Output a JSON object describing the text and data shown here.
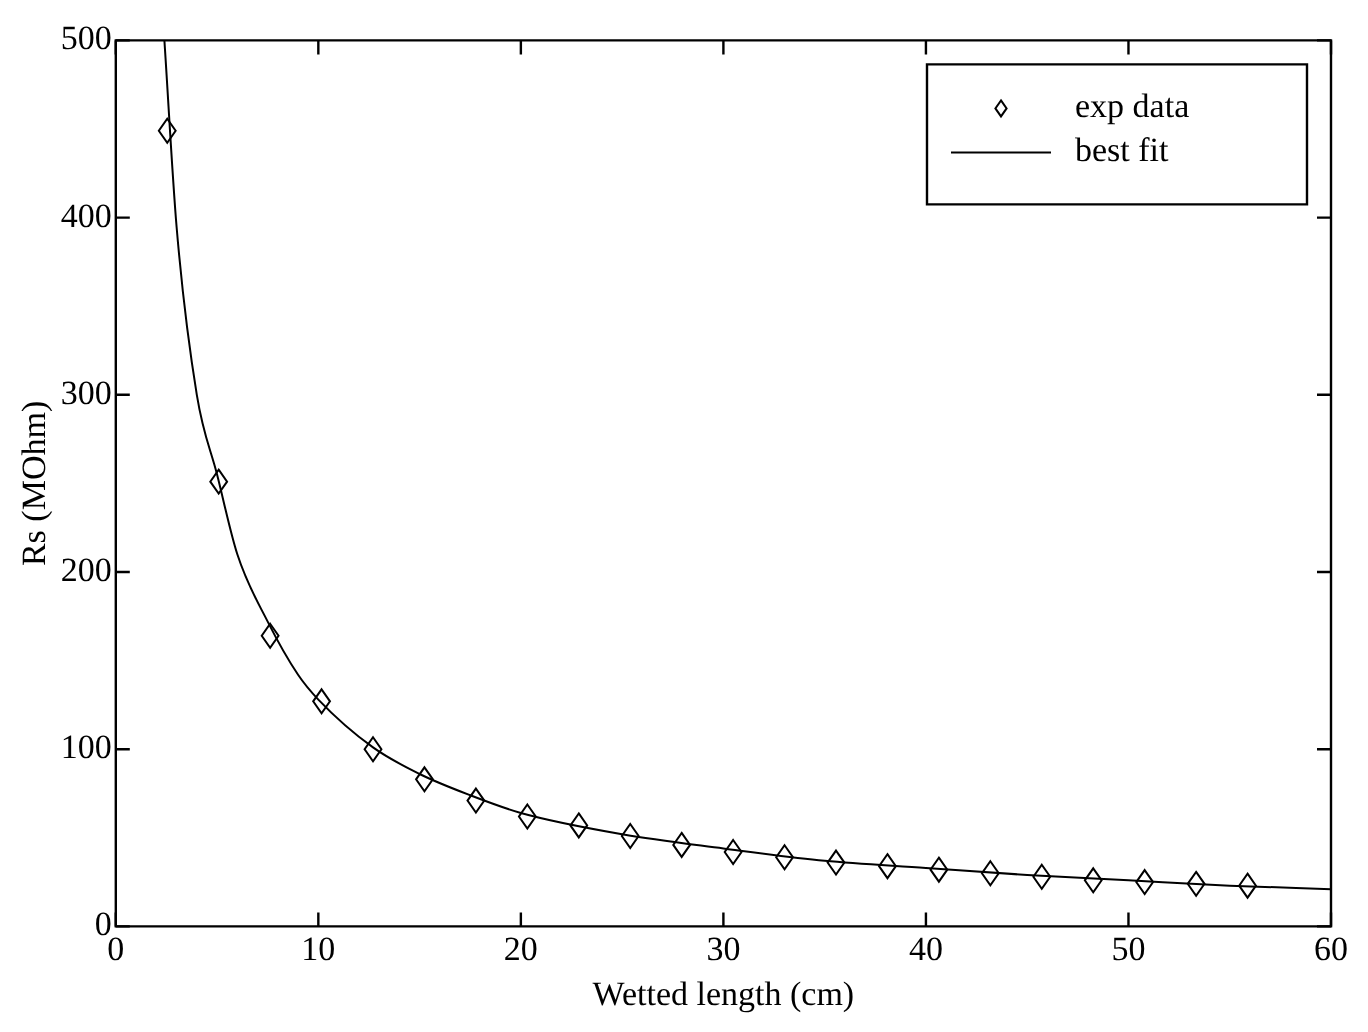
{
  "chart_data": {
    "type": "scatter",
    "xlabel": "Wetted length (cm)",
    "ylabel": "Rs (MOhm)",
    "xlim": [
      0,
      60
    ],
    "ylim": [
      0,
      500
    ],
    "xticks": [
      0,
      10,
      20,
      30,
      40,
      50,
      60
    ],
    "yticks": [
      0,
      100,
      200,
      300,
      400,
      500
    ],
    "legend": "top right",
    "marker": "diamond",
    "series": [
      {
        "name": "exp data",
        "color": "#000000",
        "x": [
          2.54,
          5.08,
          7.62,
          10.16,
          12.7,
          15.24,
          17.78,
          20.32,
          22.86,
          25.4,
          27.94,
          30.48,
          33.02,
          35.56,
          38.1,
          40.64,
          43.18,
          45.72,
          48.26,
          50.8,
          53.34,
          55.88
        ],
        "values": [
          449,
          251,
          164,
          127,
          100,
          83,
          71,
          62,
          57,
          51,
          46,
          42,
          39,
          36,
          34,
          32,
          30,
          28,
          26,
          25,
          24,
          23
        ]
      },
      {
        "name": "best fit",
        "type": "line",
        "marker": "none",
        "color": "#000000",
        "x": [
          2.4,
          3,
          4,
          5,
          6,
          7.5,
          9,
          10,
          12.7,
          15,
          17.5,
          20,
          25,
          30,
          35,
          40,
          45,
          50,
          55,
          60
        ],
        "values": [
          500,
          395,
          300,
          255,
          210,
          172,
          142,
          128,
          101,
          86,
          74,
          64,
          52,
          44,
          37,
          33,
          29,
          26,
          23,
          21
        ]
      }
    ]
  }
}
